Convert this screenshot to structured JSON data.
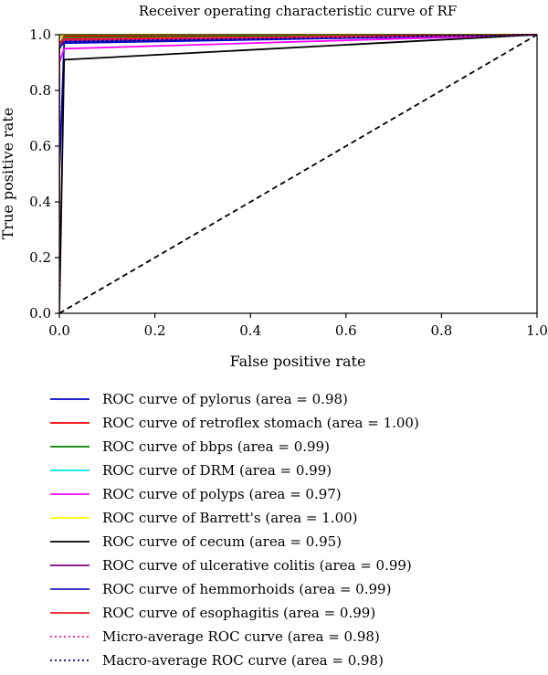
{
  "chart_data": {
    "type": "line",
    "title": "Receiver operating characteristic curve of RF",
    "xlabel": "False positive rate",
    "ylabel": "True positive rate",
    "xlim": [
      0,
      1
    ],
    "ylim": [
      0,
      1
    ],
    "x_ticks": [
      0.0,
      0.2,
      0.4,
      0.6,
      0.8,
      1.0
    ],
    "y_ticks": [
      0.0,
      0.2,
      0.4,
      0.6,
      0.8,
      1.0
    ],
    "x_tick_labels": [
      "0.0",
      "0.2",
      "0.4",
      "0.6",
      "0.8",
      "1.0"
    ],
    "y_tick_labels": [
      "0.0",
      "0.2",
      "0.4",
      "0.6",
      "0.8",
      "1.0"
    ],
    "grid": false,
    "legend_position": "below",
    "series": [
      {
        "name": "ROC curve of pylorus (area = 0.98)",
        "color": "#0000cc",
        "dash": "solid",
        "x": [
          0,
          0,
          0.01,
          1.0
        ],
        "y": [
          0,
          0.5,
          0.97,
          1.0
        ]
      },
      {
        "name": "ROC curve of retroflex stomach (area = 1.00)",
        "color": "#ff0000",
        "dash": "solid",
        "x": [
          0,
          0,
          0.01,
          1.0
        ],
        "y": [
          0,
          0.99,
          0.995,
          1.0
        ]
      },
      {
        "name": "ROC curve of bbps (area = 0.99)",
        "color": "#008000",
        "dash": "solid",
        "x": [
          0,
          0,
          0.01,
          1.0
        ],
        "y": [
          0,
          0.97,
          0.99,
          1.0
        ]
      },
      {
        "name": "ROC curve of DRM (area = 0.99)",
        "color": "#00e5ee",
        "dash": "solid",
        "x": [
          0,
          0,
          0.01,
          1.0
        ],
        "y": [
          0,
          0.96,
          0.985,
          1.0
        ]
      },
      {
        "name": "ROC curve of polyps (area = 0.97)",
        "color": "#ff00ff",
        "dash": "solid",
        "x": [
          0,
          0,
          0.01,
          1.0
        ],
        "y": [
          0,
          0.9,
          0.95,
          1.0
        ]
      },
      {
        "name": "ROC curve of Barrett's (area = 1.00)",
        "color": "#ffff00",
        "dash": "solid",
        "x": [
          0,
          0,
          0.01,
          1.0
        ],
        "y": [
          0,
          0.99,
          1.0,
          1.0
        ]
      },
      {
        "name": "ROC curve of cecum (area = 0.95)",
        "color": "#000000",
        "dash": "solid",
        "x": [
          0,
          0.01,
          1.0
        ],
        "y": [
          0,
          0.91,
          1.0
        ]
      },
      {
        "name": "ROC curve of ulcerative colitis (area = 0.99)",
        "color": "#800080",
        "dash": "solid",
        "x": [
          0,
          0,
          0.01,
          1.0
        ],
        "y": [
          0,
          0.96,
          0.98,
          1.0
        ]
      },
      {
        "name": "ROC curve of hemmorhoids (area = 0.99)",
        "color": "#1e1ebe",
        "dash": "solid",
        "x": [
          0,
          0,
          0.01,
          1.0
        ],
        "y": [
          0,
          0.95,
          0.975,
          1.0
        ]
      },
      {
        "name": "ROC curve of esophagitis (area = 0.99)",
        "color": "#ff1a1a",
        "dash": "solid",
        "x": [
          0,
          0,
          0.01,
          1.0
        ],
        "y": [
          0,
          0.97,
          0.985,
          1.0
        ]
      },
      {
        "name": "Micro-average ROC curve (area = 0.98)",
        "color": "#ff1493",
        "dash": "dotted",
        "x": [
          0,
          0,
          0.01,
          1.0
        ],
        "y": [
          0,
          0.96,
          0.98,
          1.0
        ]
      },
      {
        "name": "Macro-average ROC curve (area = 0.98)",
        "color": "#000080",
        "dash": "dotted",
        "x": [
          0,
          0,
          0.01,
          1.0
        ],
        "y": [
          0,
          0.95,
          0.975,
          1.0
        ]
      }
    ],
    "reference_line": {
      "color": "#000000",
      "dash": "dashed",
      "x": [
        0,
        1
      ],
      "y": [
        0,
        1
      ]
    }
  }
}
